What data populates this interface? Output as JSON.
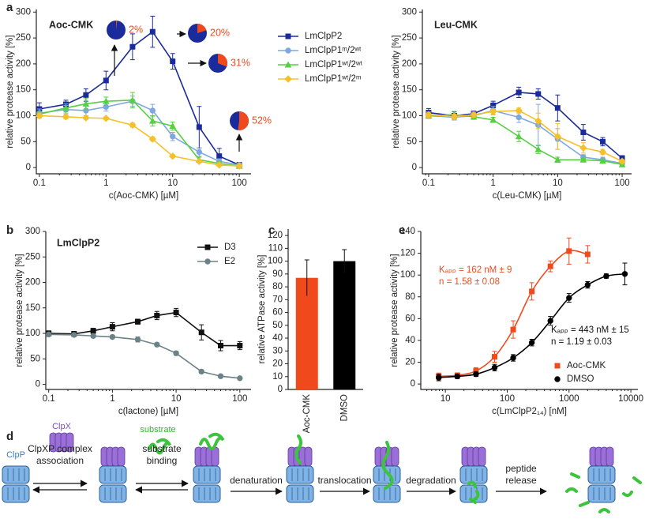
{
  "chart_data": [
    {
      "type": "line",
      "panel": "a",
      "title": "Aoc-CMK",
      "xlabel": "c(Aoc-CMK) [µM]",
      "ylabel": "relative protease activity [%]",
      "xscale": "log",
      "x": [
        0.1,
        0.25,
        0.5,
        1,
        2.5,
        5,
        10,
        25,
        50,
        100
      ],
      "xlim": [
        0.09,
        150
      ],
      "xticks": [
        0.1,
        1,
        10,
        100
      ],
      "ylim": [
        -12,
        305
      ],
      "yticks": [
        0,
        50,
        100,
        150,
        200,
        250,
        300
      ],
      "legend": "outside right",
      "series": [
        {
          "name": "LmClpP2",
          "color": "#1a2b9c",
          "marker": "square",
          "values": [
            113,
            122,
            140,
            168,
            233,
            262,
            205,
            78,
            22,
            5
          ],
          "errors": [
            12,
            8,
            12,
            18,
            25,
            30,
            15,
            40,
            15,
            5
          ]
        },
        {
          "name": "LmClpP1ᵐ/2ʷᵗ",
          "color": "#7fa7e0",
          "marker": "circle",
          "values": [
            105,
            112,
            110,
            117,
            128,
            110,
            60,
            30,
            12,
            5
          ],
          "errors": [
            8,
            8,
            10,
            8,
            10,
            12,
            8,
            8,
            5,
            3
          ]
        },
        {
          "name": "LmClpP1ʷᵗ/2ʷᵗ",
          "color": "#55d040",
          "marker": "triangle",
          "values": [
            103,
            115,
            123,
            128,
            130,
            90,
            80,
            15,
            8,
            3
          ],
          "errors": [
            5,
            8,
            10,
            8,
            15,
            10,
            8,
            5,
            3,
            2
          ]
        },
        {
          "name": "LmClpP1ʷᵗ/2ᵐ",
          "color": "#f5c02a",
          "marker": "diamond",
          "values": [
            100,
            98,
            96,
            95,
            82,
            55,
            22,
            12,
            5,
            3
          ],
          "errors": [
            5,
            4,
            3,
            3,
            4,
            4,
            3,
            2,
            2,
            2
          ]
        }
      ],
      "insets": [
        {
          "value": 2,
          "label": "2%"
        },
        {
          "value": 20,
          "label": "20%"
        },
        {
          "value": 31,
          "label": "31%"
        },
        {
          "value": 52,
          "label": "52%"
        }
      ],
      "inset_colors": [
        "#1a2b9c",
        "#f04a1c"
      ]
    },
    {
      "type": "line",
      "title": "Leu-CMK",
      "xlabel": "c(Leu-CMK) [µM]",
      "ylabel": "relative protease activity [%]",
      "xscale": "log",
      "x": [
        0.1,
        0.25,
        0.5,
        1,
        2.5,
        5,
        10,
        25,
        50,
        100
      ],
      "xlim": [
        0.08,
        140
      ],
      "xticks": [
        0.1,
        1,
        10,
        100
      ],
      "ylim": [
        -12,
        305
      ],
      "yticks": [
        0,
        50,
        100,
        150,
        200,
        250,
        300
      ],
      "series": [
        {
          "color": "#1a2b9c",
          "marker": "square",
          "values": [
            106,
            100,
            104,
            120,
            145,
            142,
            115,
            68,
            50,
            18
          ],
          "errors": [
            8,
            8,
            5,
            8,
            10,
            10,
            25,
            15,
            8,
            5
          ]
        },
        {
          "color": "#7fa7e0",
          "marker": "circle",
          "values": [
            100,
            97,
            100,
            110,
            97,
            82,
            55,
            20,
            15,
            8
          ],
          "errors": [
            5,
            5,
            5,
            8,
            10,
            40,
            20,
            5,
            5,
            3
          ]
        },
        {
          "color": "#55d040",
          "marker": "triangle",
          "values": [
            100,
            102,
            98,
            92,
            60,
            35,
            15,
            15,
            13,
            6
          ],
          "errors": [
            5,
            5,
            5,
            5,
            10,
            8,
            5,
            3,
            3,
            3
          ]
        },
        {
          "color": "#f5c02a",
          "marker": "diamond",
          "values": [
            102,
            98,
            102,
            108,
            110,
            90,
            60,
            38,
            30,
            12
          ],
          "errors": [
            5,
            5,
            5,
            5,
            5,
            15,
            25,
            10,
            5,
            3
          ]
        }
      ]
    },
    {
      "type": "line",
      "panel": "b",
      "title": "LmClpP2",
      "xlabel": "c(lactone) [µM]",
      "ylabel": "relative protease activity [%]",
      "xscale": "log",
      "x": [
        0.1,
        0.25,
        0.5,
        1,
        2.5,
        5,
        10,
        25,
        50,
        100
      ],
      "xlim": [
        0.09,
        150
      ],
      "xticks": [
        0.1,
        1,
        10,
        100
      ],
      "ylim": [
        -10,
        300
      ],
      "yticks": [
        0,
        50,
        100,
        150,
        200,
        250,
        300
      ],
      "legend": "upper right",
      "series": [
        {
          "name": "D3",
          "color": "#111111",
          "marker": "square",
          "values": [
            100,
            99,
            105,
            113,
            123,
            135,
            141,
            102,
            76,
            76
          ],
          "errors": [
            5,
            5,
            5,
            8,
            5,
            8,
            8,
            15,
            10,
            8
          ]
        },
        {
          "name": "E2",
          "color": "#6b8287",
          "marker": "circle",
          "values": [
            98,
            97,
            95,
            93,
            88,
            78,
            61,
            25,
            16,
            12
          ],
          "errors": [
            3,
            3,
            3,
            3,
            5,
            3,
            4,
            3,
            2,
            2
          ]
        }
      ]
    },
    {
      "type": "bar",
      "panel": "c",
      "ylabel": "relative ATPase activity [%]",
      "categories": [
        "Aoc-CMK",
        "DMSO"
      ],
      "values": [
        87,
        100
      ],
      "errors": [
        14,
        9
      ],
      "colors": [
        "#f04a1c",
        "#000000"
      ],
      "ylim": [
        0,
        125
      ],
      "yticks": [
        0,
        10,
        20,
        30,
        40,
        50,
        60,
        70,
        80,
        90,
        100,
        110,
        120
      ]
    },
    {
      "type": "scatter",
      "panel": "e",
      "fit": true,
      "xlabel": "c(LmClpP2₁₄) [nM]",
      "ylabel": "relative protease activity [%]",
      "xscale": "log",
      "xlim": [
        4,
        13000
      ],
      "xticks": [
        10,
        100,
        1000,
        10000
      ],
      "ylim": [
        -5,
        140
      ],
      "yticks": [
        0,
        20,
        40,
        60,
        80,
        100,
        120,
        140
      ],
      "legend": "lower right",
      "series": [
        {
          "name": "Aoc-CMK",
          "color": "#f04a1c",
          "marker": "square",
          "x": [
            7.8,
            15.6,
            31.25,
            62.5,
            125,
            250,
            500,
            1000,
            2000
          ],
          "values": [
            7,
            8,
            12,
            25,
            50,
            85,
            108,
            122,
            119
          ],
          "errors": [
            3,
            2,
            3,
            5,
            8,
            8,
            5,
            12,
            8
          ]
        },
        {
          "name": "DMSO",
          "color": "#000000",
          "marker": "circle",
          "x": [
            7.8,
            15.6,
            31.25,
            62.5,
            125,
            250,
            500,
            1000,
            2000,
            4000,
            8000
          ],
          "values": [
            6,
            7,
            9,
            15,
            24,
            38,
            58,
            79,
            91,
            99,
            101
          ],
          "errors": [
            3,
            2,
            2,
            3,
            3,
            3,
            4,
            4,
            3,
            2,
            10
          ]
        }
      ],
      "annotations": [
        {
          "text": "Kₐₚₚ = 162 nM ± 9",
          "color": "#f04a1c"
        },
        {
          "text": "n = 1.58 ± 0.08",
          "color": "#f04a1c"
        },
        {
          "text": "Kₐₚₚ = 443 nM ± 15",
          "color": "#111111"
        },
        {
          "text": "n = 1.19 ± 0.03",
          "color": "#111111"
        }
      ]
    }
  ],
  "diagram": {
    "panel": "d",
    "clpx": "ClpX",
    "clpp": "ClpP",
    "substrate": "substrate",
    "steps": [
      [
        "ClpXP complex",
        "association"
      ],
      [
        "substrate",
        "binding"
      ],
      [
        "denaturation"
      ],
      [
        "translocation"
      ],
      [
        "degradation"
      ],
      [
        "peptide",
        "release"
      ]
    ]
  }
}
